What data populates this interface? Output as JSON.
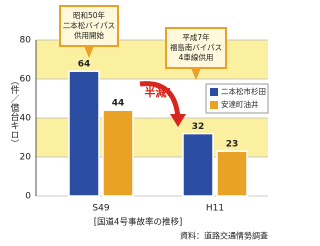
{
  "chart_data": {
    "type": "bar",
    "y_label": "（件／億台キロ）",
    "categories": [
      "S49",
      "H11"
    ],
    "series": [
      {
        "name": "二本松市杉田",
        "color": "#2b4ea2",
        "values": [
          64,
          32
        ]
      },
      {
        "name": "安達町油井",
        "color": "#e9a126",
        "values": [
          44,
          23
        ]
      }
    ],
    "ylim": [
      0,
      80
    ],
    "yticks": [
      0,
      20,
      40,
      60,
      80
    ],
    "annotations": [
      {
        "lines": [
          "昭和50年",
          "二本松バイパス",
          "供用開始"
        ]
      },
      {
        "lines": [
          "平成7年",
          "福島南バイパス",
          "4車線供用"
        ]
      }
    ],
    "highlight": "半減!",
    "caption": "[国道4号事故率の推移]",
    "source": "資料：道路交通情勢調査"
  }
}
